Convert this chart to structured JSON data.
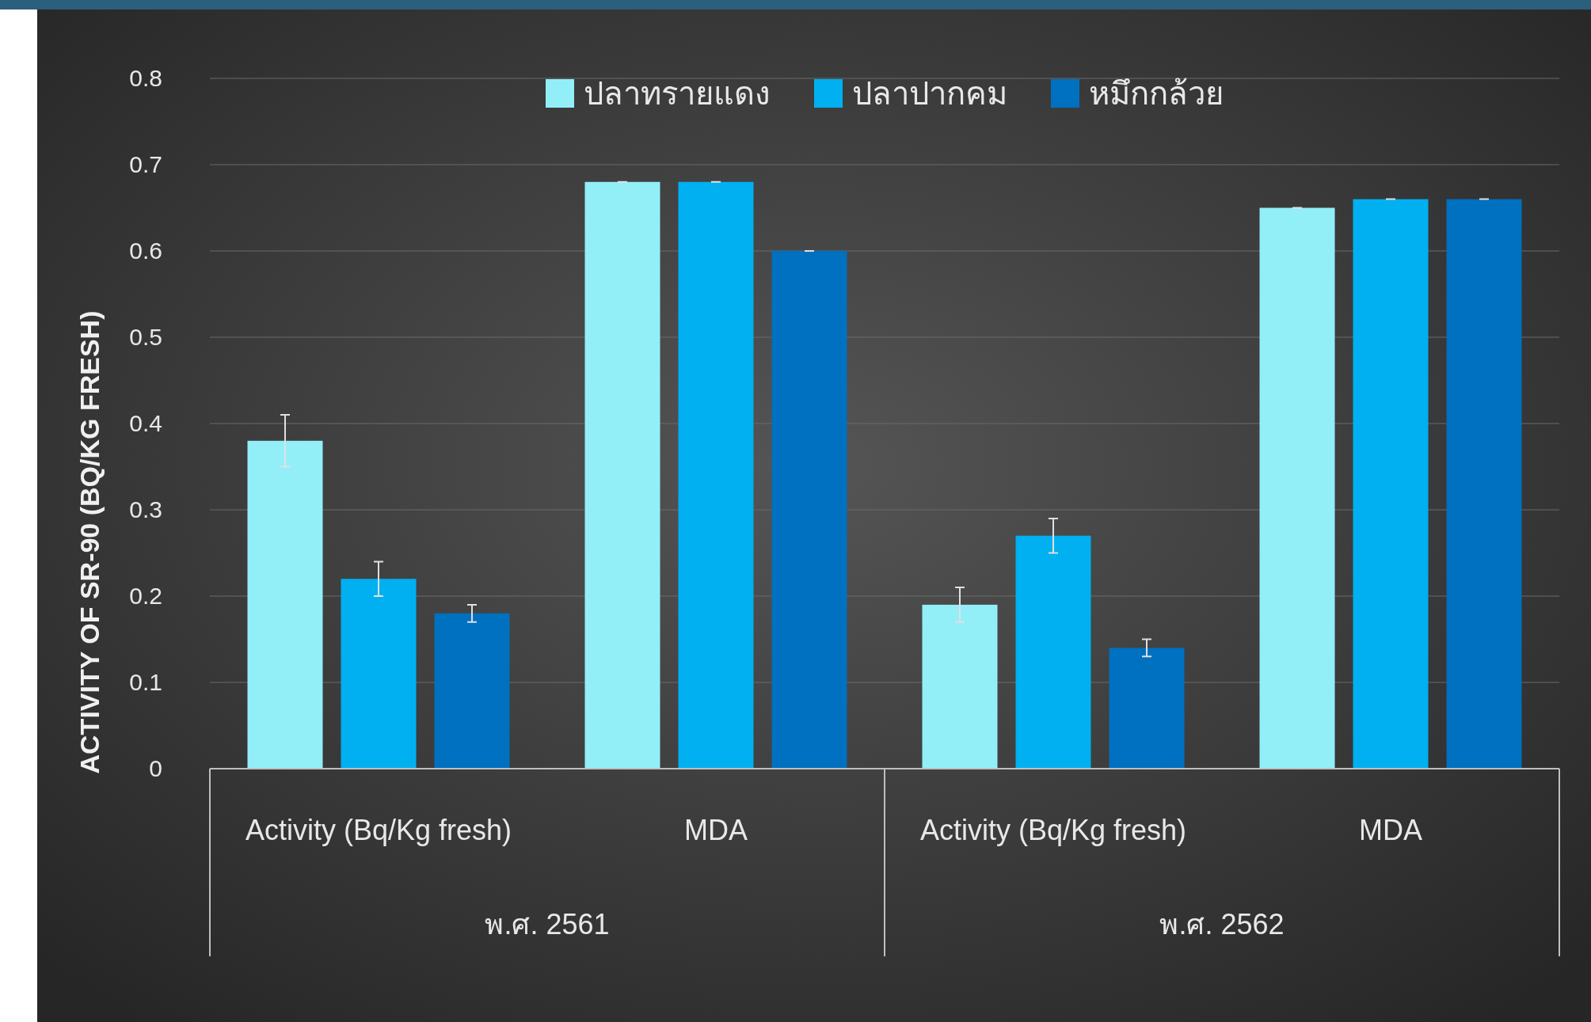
{
  "chart_data": {
    "type": "bar",
    "ylabel": "ACTIVITY OF SR-90 (BQ/KG FRESH)",
    "categories": [
      "Activity (Bq/Kg fresh)",
      "MDA",
      "Activity (Bq/Kg fresh)",
      "MDA"
    ],
    "series": [
      {
        "name": "ปลาทรายแดง",
        "color": "#92eff7",
        "values": [
          0.38,
          0.68,
          0.19,
          0.65
        ],
        "errors": [
          0.03,
          0,
          0.02,
          0
        ]
      },
      {
        "name": "ปลาปากคม",
        "color": "#00b0f0",
        "values": [
          0.22,
          0.68,
          0.27,
          0.66
        ],
        "errors": [
          0.02,
          0,
          0.02,
          0
        ]
      },
      {
        "name": "หมึกกล้วย",
        "color": "#0070c0",
        "values": [
          0.18,
          0.6,
          0.14,
          0.66
        ],
        "errors": [
          0.01,
          0,
          0.01,
          0
        ]
      }
    ],
    "annotations": [
      "พ.ศ. 2561",
      "พ.ศ. 2562"
    ],
    "ylim": [
      0,
      0.8
    ],
    "yticks": [
      0,
      0.1,
      0.2,
      0.3,
      0.4,
      0.5,
      0.6,
      0.7,
      0.8
    ],
    "grid": "y",
    "legend": "top"
  }
}
